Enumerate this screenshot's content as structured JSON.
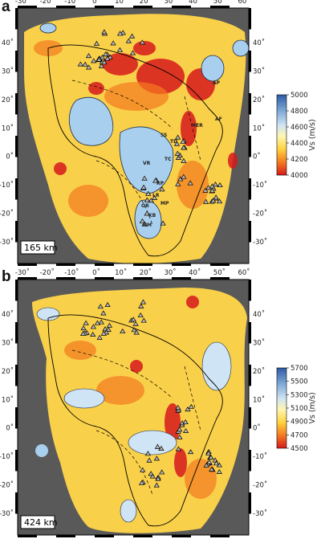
{
  "panels": [
    {
      "letter": "a",
      "depth_label": "165 km",
      "colorbar": {
        "label": "Vs (m/s)",
        "ticks": [
          "5000",
          "4800",
          "4600",
          "4400",
          "4200",
          "4000"
        ],
        "colors": [
          "#2f5aa6",
          "#7ea9d6",
          "#cfe4f5",
          "#fff6b0",
          "#ffd23f",
          "#f47a1f",
          "#d7191c"
        ]
      },
      "features": [
        "AP",
        "AF",
        "MER",
        "SS",
        "TD",
        "TC",
        "VR",
        "RP",
        "LR",
        "MP",
        "OR",
        "KB",
        "NM"
      ]
    },
    {
      "letter": "b",
      "depth_label": "424 km",
      "colorbar": {
        "label": "Vs (m/s)",
        "ticks": [
          "5700",
          "5500",
          "5300",
          "5100",
          "4900",
          "4700",
          "4500"
        ],
        "colors": [
          "#2f5aa6",
          "#7ea9d6",
          "#cfe4f5",
          "#fff6b0",
          "#ffd23f",
          "#f47a1f",
          "#d7191c"
        ]
      }
    }
  ],
  "axes": {
    "lon_ticks": [
      "-30˚",
      "-20˚",
      "-10˚",
      "0˚",
      "10˚",
      "20˚",
      "30˚",
      "40˚",
      "50˚",
      "60˚"
    ],
    "lat_ticks": [
      "40˚",
      "30˚",
      "20˚",
      "10˚",
      "0˚",
      "-10˚",
      "-20˚",
      "-30˚"
    ]
  },
  "colors": {
    "ocean_mask": "#595959",
    "land_fill": "#f9d04a",
    "hot": "#d7191c",
    "cold": "#a9cfee"
  }
}
